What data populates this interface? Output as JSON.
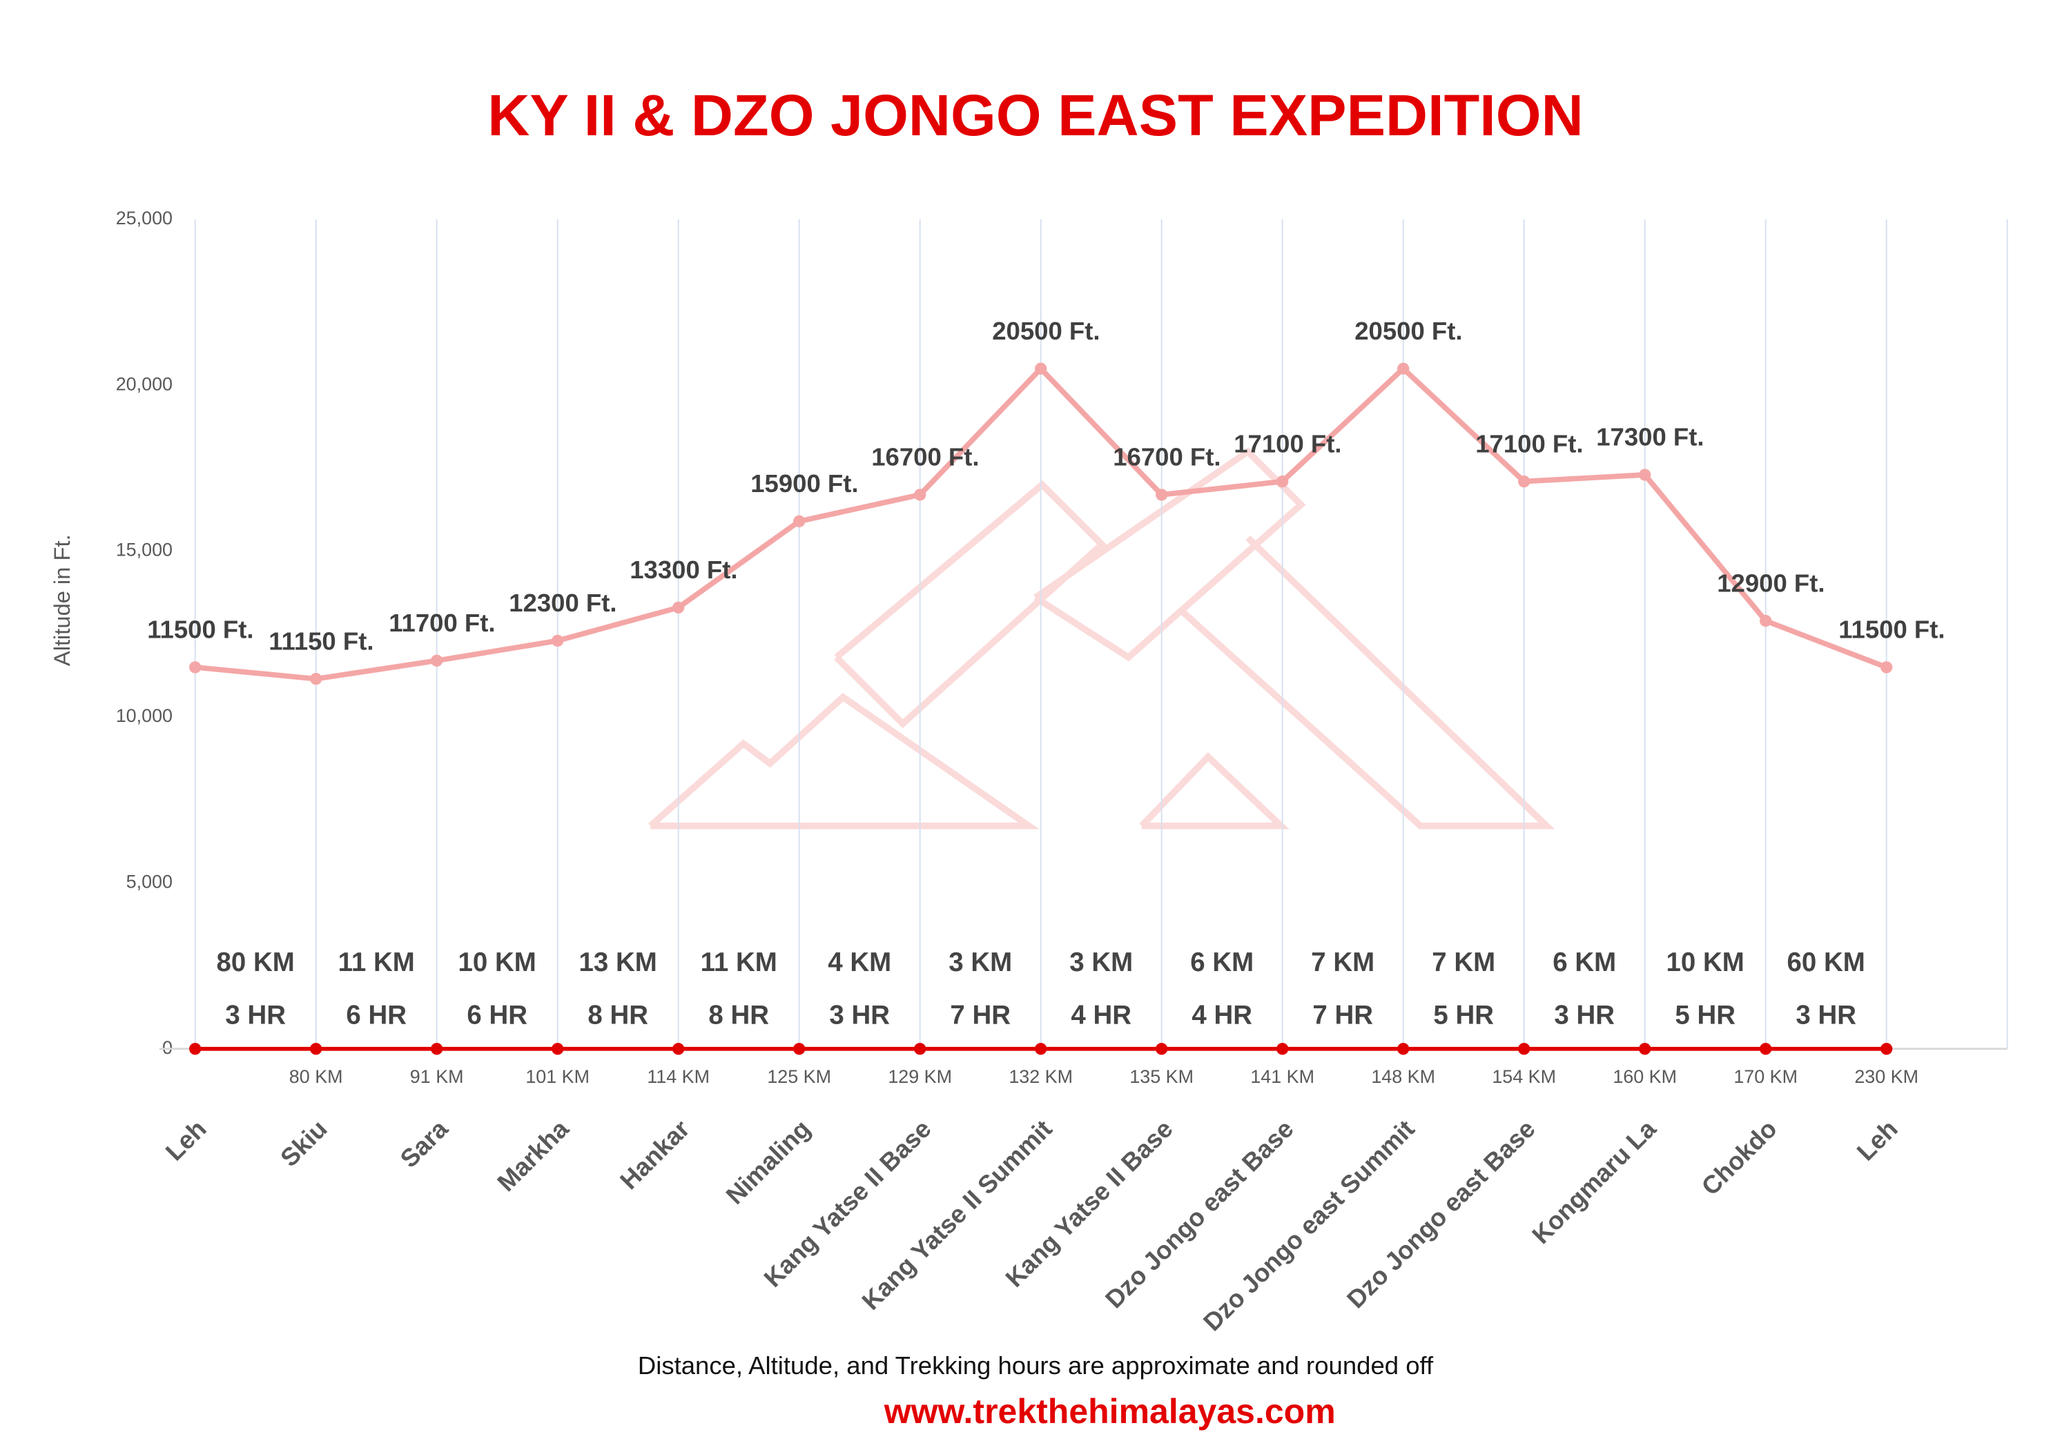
{
  "chart_data": {
    "type": "line",
    "title": "KY II & DZO JONGO EAST EXPEDITION",
    "y_label": "Altitude in Ft.",
    "categories": [
      "Leh",
      "Skiu",
      "Sara",
      "Markha",
      "Hankar",
      "Nimaling",
      "Kang Yatse II Base",
      "Kang Yatse II Summit",
      "Kang Yatse II Base",
      "Dzo Jongo east Base",
      "Dzo Jongo east Summit",
      "Dzo Jongo east Base",
      "Kongmaru La",
      "Chokdo",
      "Leh"
    ],
    "series": [
      {
        "color": "#f4a6a6",
        "values": [
          11500,
          11150,
          11700,
          12300,
          13300,
          15900,
          16700,
          20500,
          16700,
          17100,
          20500,
          17100,
          17300,
          12900,
          11500
        ],
        "value_labels": [
          "11500 Ft.",
          "11150 Ft.",
          "11700 Ft.",
          "12300 Ft.",
          "13300 Ft.",
          "15900 Ft.",
          "16700 Ft.",
          "20500 Ft.",
          "16700 Ft.",
          "17100 Ft.",
          "20500 Ft.",
          "17100 Ft.",
          "17300 Ft.",
          "12900 Ft.",
          "11500 Ft."
        ]
      },
      {
        "color": "#e00000",
        "values": [
          0,
          0,
          0,
          0,
          0,
          0,
          0,
          0,
          0,
          0,
          0,
          0,
          0,
          0,
          0
        ]
      }
    ],
    "distance_labels": [
      null,
      "80 KM",
      "91 KM",
      "101 KM",
      "114 KM",
      "125 KM",
      "129 KM",
      "132 KM",
      "135 KM",
      "141 KM",
      "148 KM",
      "154 KM",
      "160 KM",
      "170 KM",
      "230 KM"
    ],
    "segment_distances": [
      "80 KM",
      "11 KM",
      "10 KM",
      "13 KM",
      "11 KM",
      "4 KM",
      "3 KM",
      "3 KM",
      "6 KM",
      "7 KM",
      "7 KM",
      "6 KM",
      "10 KM",
      "60 KM"
    ],
    "segment_hours": [
      "3 HR",
      "6 HR",
      "6 HR",
      "8 HR",
      "8 HR",
      "3 HR",
      "7 HR",
      "4 HR",
      "4 HR",
      "7 HR",
      "5 HR",
      "3 HR",
      "5 HR",
      "3 HR"
    ],
    "ylim": [
      0,
      25000
    ],
    "yticks": [
      0,
      {
        "value": 5000,
        "label": "5,000"
      },
      {
        "value": 10000,
        "label": "10,000"
      },
      {
        "value": 15000,
        "label": "15,000"
      },
      {
        "value": 20000,
        "label": "20,000"
      },
      {
        "value": 25000,
        "label": "25,000"
      }
    ],
    "grid": true,
    "note": "Distance, Altitude, and Trekking hours are approximate and rounded off",
    "website": "www.trekthehimalayas.com"
  }
}
